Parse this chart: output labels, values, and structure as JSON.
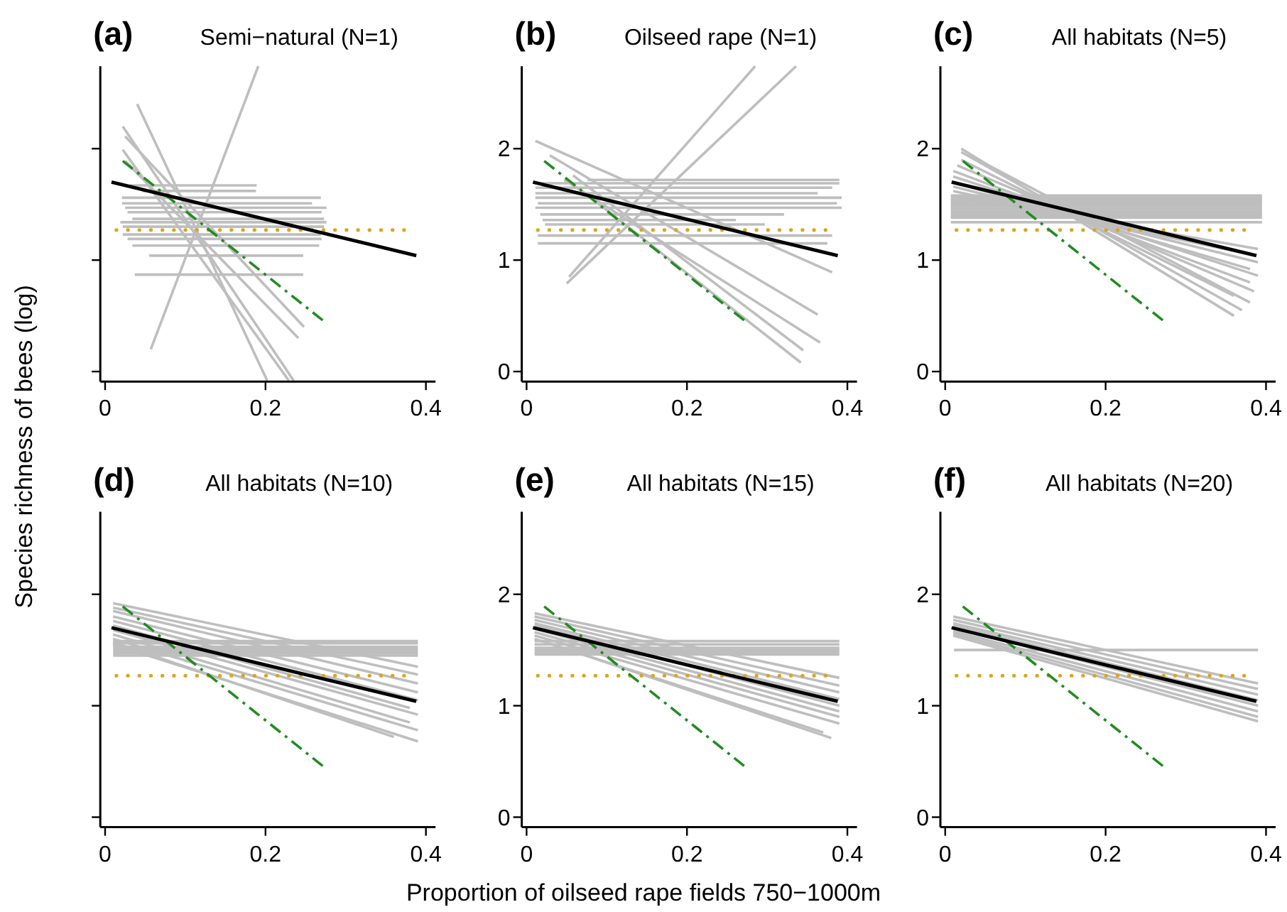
{
  "chart_data": [
    {
      "type": "line",
      "title": "(a)",
      "subtitle": "Semi−natural (N=1)",
      "ylabel": "Species richness of bees (log)",
      "xlim": [
        -0.006,
        0.412
      ],
      "ylim": [
        -0.09,
        2.74
      ],
      "xticks": [
        0,
        0.2,
        0.4
      ],
      "yticks": [
        0,
        1,
        2
      ],
      "tick_labels": "x",
      "series": [
        {
          "color": "#bebebe",
          "x": [
            0.031,
            0.189
          ],
          "values": [
            1.67,
            1.67
          ]
        },
        {
          "color": "#bebebe",
          "x": [
            0.046,
            0.188
          ],
          "values": [
            1.62,
            1.62
          ]
        },
        {
          "color": "#bebebe",
          "x": [
            0.021,
            0.269
          ],
          "values": [
            1.56,
            1.56
          ]
        },
        {
          "color": "#bebebe",
          "x": [
            0.021,
            0.258
          ],
          "values": [
            1.51,
            1.51
          ]
        },
        {
          "color": "#bebebe",
          "x": [
            0.025,
            0.276
          ],
          "values": [
            1.47,
            1.47
          ]
        },
        {
          "color": "#bebebe",
          "x": [
            0.028,
            0.27
          ],
          "values": [
            1.43,
            1.43
          ]
        },
        {
          "color": "#bebebe",
          "x": [
            0.034,
            0.273
          ],
          "values": [
            1.37,
            1.37
          ]
        },
        {
          "color": "#bebebe",
          "x": [
            0.019,
            0.276
          ],
          "values": [
            1.34,
            1.34
          ]
        },
        {
          "color": "#bebebe",
          "x": [
            0.022,
            0.273
          ],
          "values": [
            1.3,
            1.3
          ]
        },
        {
          "color": "#bebebe",
          "x": [
            0.022,
            0.269
          ],
          "values": [
            1.23,
            1.23
          ]
        },
        {
          "color": "#bebebe",
          "x": [
            0.028,
            0.27
          ],
          "values": [
            1.19,
            1.19
          ]
        },
        {
          "color": "#bebebe",
          "x": [
            0.034,
            0.267
          ],
          "values": [
            1.13,
            1.13
          ]
        },
        {
          "color": "#bebebe",
          "x": [
            0.055,
            0.247
          ],
          "values": [
            1.04,
            1.04
          ]
        },
        {
          "color": "#bebebe",
          "x": [
            0.037,
            0.247
          ],
          "values": [
            0.87,
            0.87
          ]
        },
        {
          "color": "#bebebe",
          "x": [
            0.057,
            0.191
          ],
          "values": [
            0.2,
            2.74
          ]
        },
        {
          "color": "#bebebe",
          "x": [
            0.04,
            0.202
          ],
          "values": [
            2.4,
            -0.08
          ]
        },
        {
          "color": "#bebebe",
          "x": [
            0.022,
            0.235
          ],
          "values": [
            2.2,
            -0.08
          ]
        },
        {
          "color": "#bebebe",
          "x": [
            0.022,
            0.229
          ],
          "values": [
            1.99,
            -0.08
          ]
        },
        {
          "color": "#bebebe",
          "x": [
            0.025,
            0.248
          ],
          "values": [
            2.11,
            0.4
          ]
        },
        {
          "color": "#bebebe",
          "x": [
            0.025,
            0.241
          ],
          "values": [
            1.89,
            0.3
          ]
        },
        {
          "color": "#daa520",
          "line_style": "dotted",
          "x": [
            0.014,
            0.38
          ],
          "values": [
            1.27,
            1.27
          ]
        },
        {
          "color": "#228b22",
          "line_style": "dashed",
          "x": [
            0.022,
            0.273
          ],
          "values": [
            1.89,
            0.45
          ]
        },
        {
          "color": "#000000",
          "x": [
            0.008,
            0.388
          ],
          "values": [
            1.7,
            1.04
          ]
        }
      ]
    },
    {
      "type": "line",
      "title": "(b)",
      "subtitle": "Oilseed rape (N=1)",
      "xlim": [
        -0.006,
        0.412
      ],
      "ylim": [
        -0.09,
        2.74
      ],
      "xticks": [
        0,
        0.2,
        0.4
      ],
      "yticks": [
        0,
        1,
        2
      ],
      "series": [
        {
          "color": "#bebebe",
          "x": [
            0.076,
            0.39
          ],
          "values": [
            1.72,
            1.72
          ]
        },
        {
          "color": "#bebebe",
          "x": [
            0.011,
            0.39
          ],
          "values": [
            1.69,
            1.69
          ]
        },
        {
          "color": "#bebebe",
          "x": [
            0.011,
            0.381
          ],
          "values": [
            1.65,
            1.65
          ]
        },
        {
          "color": "#bebebe",
          "x": [
            0.011,
            0.363
          ],
          "values": [
            1.6,
            1.6
          ]
        },
        {
          "color": "#bebebe",
          "x": [
            0.011,
            0.393
          ],
          "values": [
            1.56,
            1.56
          ]
        },
        {
          "color": "#bebebe",
          "x": [
            0.014,
            0.387
          ],
          "values": [
            1.51,
            1.51
          ]
        },
        {
          "color": "#bebebe",
          "x": [
            0.011,
            0.393
          ],
          "values": [
            1.47,
            1.47
          ]
        },
        {
          "color": "#bebebe",
          "x": [
            0.017,
            0.321
          ],
          "values": [
            1.41,
            1.41
          ]
        },
        {
          "color": "#bebebe",
          "x": [
            0.02,
            0.261
          ],
          "values": [
            1.36,
            1.36
          ]
        },
        {
          "color": "#bebebe",
          "x": [
            0.023,
            0.297
          ],
          "values": [
            1.32,
            1.32
          ]
        },
        {
          "color": "#bebebe",
          "x": [
            0.014,
            0.381
          ],
          "values": [
            1.22,
            1.22
          ]
        },
        {
          "color": "#bebebe",
          "x": [
            0.014,
            0.375
          ],
          "values": [
            1.15,
            1.15
          ]
        },
        {
          "color": "#bebebe",
          "x": [
            0.053,
            0.285
          ],
          "values": [
            0.85,
            2.74
          ]
        },
        {
          "color": "#bebebe",
          "x": [
            0.05,
            0.336
          ],
          "values": [
            0.79,
            2.74
          ]
        },
        {
          "color": "#bebebe",
          "x": [
            0.011,
            0.381
          ],
          "values": [
            2.07,
            0.89
          ]
        },
        {
          "color": "#bebebe",
          "x": [
            0.029,
            0.363
          ],
          "values": [
            1.94,
            0.51
          ]
        },
        {
          "color": "#bebebe",
          "x": [
            0.047,
            0.366
          ],
          "values": [
            1.72,
            0.26
          ]
        },
        {
          "color": "#bebebe",
          "x": [
            0.058,
            0.345
          ],
          "values": [
            1.76,
            0.19
          ]
        },
        {
          "color": "#bebebe",
          "x": [
            0.082,
            0.342
          ],
          "values": [
            1.55,
            0.08
          ]
        },
        {
          "color": "#daa520",
          "line_style": "dotted",
          "x": [
            0.014,
            0.38
          ],
          "values": [
            1.27,
            1.27
          ]
        },
        {
          "color": "#228b22",
          "line_style": "dashed",
          "x": [
            0.022,
            0.273
          ],
          "values": [
            1.89,
            0.45
          ]
        },
        {
          "color": "#000000",
          "x": [
            0.008,
            0.388
          ],
          "values": [
            1.7,
            1.04
          ]
        }
      ]
    },
    {
      "type": "line",
      "title": "(c)",
      "subtitle": "All habitats (N=5)",
      "xlim": [
        -0.006,
        0.412
      ],
      "ylim": [
        -0.09,
        2.74
      ],
      "xticks": [
        0,
        0.2,
        0.4
      ],
      "yticks": [
        0,
        1,
        2
      ],
      "series": [
        {
          "color": "#bebebe",
          "x": [
            0.007,
            0.395
          ],
          "values": [
            1.58,
            1.58
          ]
        },
        {
          "color": "#bebebe",
          "x": [
            0.007,
            0.395
          ],
          "values": [
            1.56,
            1.56
          ]
        },
        {
          "color": "#bebebe",
          "x": [
            0.007,
            0.395
          ],
          "values": [
            1.54,
            1.54
          ]
        },
        {
          "color": "#bebebe",
          "x": [
            0.007,
            0.395
          ],
          "values": [
            1.52,
            1.52
          ]
        },
        {
          "color": "#bebebe",
          "x": [
            0.007,
            0.395
          ],
          "values": [
            1.5,
            1.5
          ]
        },
        {
          "color": "#bebebe",
          "x": [
            0.007,
            0.395
          ],
          "values": [
            1.48,
            1.48
          ]
        },
        {
          "color": "#bebebe",
          "x": [
            0.007,
            0.395
          ],
          "values": [
            1.46,
            1.46
          ]
        },
        {
          "color": "#bebebe",
          "x": [
            0.007,
            0.395
          ],
          "values": [
            1.44,
            1.44
          ]
        },
        {
          "color": "#bebebe",
          "x": [
            0.007,
            0.395
          ],
          "values": [
            1.42,
            1.42
          ]
        },
        {
          "color": "#bebebe",
          "x": [
            0.007,
            0.395
          ],
          "values": [
            1.4,
            1.4
          ]
        },
        {
          "color": "#bebebe",
          "x": [
            0.007,
            0.395
          ],
          "values": [
            1.38,
            1.38
          ]
        },
        {
          "color": "#bebebe",
          "x": [
            0.007,
            0.395
          ],
          "values": [
            1.34,
            1.34
          ]
        },
        {
          "color": "#bebebe",
          "x": [
            0.02,
            0.36
          ],
          "values": [
            2,
            0.5
          ]
        },
        {
          "color": "#bebebe",
          "x": [
            0.02,
            0.37
          ],
          "values": [
            1.97,
            0.55
          ]
        },
        {
          "color": "#bebebe",
          "x": [
            0.03,
            0.38
          ],
          "values": [
            1.94,
            0.62
          ]
        },
        {
          "color": "#bebebe",
          "x": [
            0.02,
            0.36
          ],
          "values": [
            1.9,
            0.68
          ]
        },
        {
          "color": "#bebebe",
          "x": [
            0.015,
            0.385
          ],
          "values": [
            1.85,
            0.72
          ]
        },
        {
          "color": "#bebebe",
          "x": [
            0.01,
            0.38
          ],
          "values": [
            1.8,
            0.8
          ]
        },
        {
          "color": "#bebebe",
          "x": [
            0.01,
            0.39
          ],
          "values": [
            1.75,
            0.86
          ]
        },
        {
          "color": "#bebebe",
          "x": [
            0.01,
            0.38
          ],
          "values": [
            1.7,
            0.92
          ]
        },
        {
          "color": "#bebebe",
          "x": [
            0.01,
            0.39
          ],
          "values": [
            1.66,
            0.98
          ]
        },
        {
          "color": "#bebebe",
          "x": [
            0.01,
            0.38
          ],
          "values": [
            1.62,
            1.05
          ]
        },
        {
          "color": "#bebebe",
          "x": [
            0.01,
            0.39
          ],
          "values": [
            1.58,
            1.1
          ]
        },
        {
          "color": "#daa520",
          "line_style": "dotted",
          "x": [
            0.014,
            0.38
          ],
          "values": [
            1.27,
            1.27
          ]
        },
        {
          "color": "#228b22",
          "line_style": "dashed",
          "x": [
            0.022,
            0.273
          ],
          "values": [
            1.89,
            0.45
          ]
        },
        {
          "color": "#000000",
          "x": [
            0.008,
            0.388
          ],
          "values": [
            1.7,
            1.04
          ]
        }
      ]
    },
    {
      "type": "line",
      "title": "(d)",
      "subtitle": "All habitats (N=10)",
      "xlim": [
        -0.006,
        0.412
      ],
      "ylim": [
        -0.09,
        2.74
      ],
      "xticks": [
        0,
        0.2,
        0.4
      ],
      "yticks": [
        0,
        1,
        2
      ],
      "tick_labels": "x",
      "series": [
        {
          "color": "#bebebe",
          "x": [
            0.01,
            0.39
          ],
          "values": [
            1.58,
            1.58
          ]
        },
        {
          "color": "#bebebe",
          "x": [
            0.01,
            0.39
          ],
          "values": [
            1.56,
            1.56
          ]
        },
        {
          "color": "#bebebe",
          "x": [
            0.01,
            0.39
          ],
          "values": [
            1.53,
            1.53
          ]
        },
        {
          "color": "#bebebe",
          "x": [
            0.01,
            0.39
          ],
          "values": [
            1.51,
            1.51
          ]
        },
        {
          "color": "#bebebe",
          "x": [
            0.01,
            0.39
          ],
          "values": [
            1.49,
            1.49
          ]
        },
        {
          "color": "#bebebe",
          "x": [
            0.01,
            0.39
          ],
          "values": [
            1.47,
            1.47
          ]
        },
        {
          "color": "#bebebe",
          "x": [
            0.01,
            0.39
          ],
          "values": [
            1.45,
            1.45
          ]
        },
        {
          "color": "#bebebe",
          "x": [
            0.01,
            0.39
          ],
          "values": [
            1.92,
            1.35
          ]
        },
        {
          "color": "#bebebe",
          "x": [
            0.01,
            0.39
          ],
          "values": [
            1.88,
            1.28
          ]
        },
        {
          "color": "#bebebe",
          "x": [
            0.01,
            0.39
          ],
          "values": [
            1.85,
            1.2
          ]
        },
        {
          "color": "#bebebe",
          "x": [
            0.01,
            0.39
          ],
          "values": [
            1.8,
            1.12
          ]
        },
        {
          "color": "#bebebe",
          "x": [
            0.01,
            0.39
          ],
          "values": [
            1.76,
            1.05
          ]
        },
        {
          "color": "#bebebe",
          "x": [
            0.01,
            0.38
          ],
          "values": [
            1.72,
            0.98
          ]
        },
        {
          "color": "#bebebe",
          "x": [
            0.01,
            0.39
          ],
          "values": [
            1.68,
            0.92
          ]
        },
        {
          "color": "#bebebe",
          "x": [
            0.01,
            0.38
          ],
          "values": [
            1.64,
            0.85
          ]
        },
        {
          "color": "#bebebe",
          "x": [
            0.01,
            0.39
          ],
          "values": [
            1.6,
            0.78
          ]
        },
        {
          "color": "#bebebe",
          "x": [
            0.01,
            0.36
          ],
          "values": [
            1.57,
            0.72
          ]
        },
        {
          "color": "#bebebe",
          "x": [
            0.01,
            0.39
          ],
          "values": [
            1.55,
            0.68
          ]
        },
        {
          "color": "#daa520",
          "line_style": "dotted",
          "x": [
            0.014,
            0.38
          ],
          "values": [
            1.27,
            1.27
          ]
        },
        {
          "color": "#228b22",
          "line_style": "dashed",
          "x": [
            0.022,
            0.273
          ],
          "values": [
            1.89,
            0.45
          ]
        },
        {
          "color": "#000000",
          "x": [
            0.008,
            0.388
          ],
          "values": [
            1.7,
            1.04
          ]
        }
      ]
    },
    {
      "type": "line",
      "title": "(e)",
      "subtitle": "All habitats (N=15)",
      "xlabel": "Proportion of oilseed rape fields 750−1000m",
      "xlim": [
        -0.006,
        0.412
      ],
      "ylim": [
        -0.09,
        2.74
      ],
      "xticks": [
        0,
        0.2,
        0.4
      ],
      "yticks": [
        0,
        1,
        2
      ],
      "series": [
        {
          "color": "#bebebe",
          "x": [
            0.01,
            0.39
          ],
          "values": [
            1.58,
            1.58
          ]
        },
        {
          "color": "#bebebe",
          "x": [
            0.01,
            0.39
          ],
          "values": [
            1.55,
            1.55
          ]
        },
        {
          "color": "#bebebe",
          "x": [
            0.01,
            0.39
          ],
          "values": [
            1.52,
            1.52
          ]
        },
        {
          "color": "#bebebe",
          "x": [
            0.01,
            0.39
          ],
          "values": [
            1.5,
            1.5
          ]
        },
        {
          "color": "#bebebe",
          "x": [
            0.01,
            0.39
          ],
          "values": [
            1.48,
            1.48
          ]
        },
        {
          "color": "#bebebe",
          "x": [
            0.01,
            0.39
          ],
          "values": [
            1.46,
            1.46
          ]
        },
        {
          "color": "#bebebe",
          "x": [
            0.01,
            0.39
          ],
          "values": [
            1.83,
            1.25
          ]
        },
        {
          "color": "#bebebe",
          "x": [
            0.01,
            0.39
          ],
          "values": [
            1.8,
            1.18
          ]
        },
        {
          "color": "#bebebe",
          "x": [
            0.01,
            0.39
          ],
          "values": [
            1.77,
            1.12
          ]
        },
        {
          "color": "#bebebe",
          "x": [
            0.01,
            0.39
          ],
          "values": [
            1.74,
            1.06
          ]
        },
        {
          "color": "#bebebe",
          "x": [
            0.01,
            0.39
          ],
          "values": [
            1.72,
            1
          ]
        },
        {
          "color": "#bebebe",
          "x": [
            0.01,
            0.39
          ],
          "values": [
            1.69,
            0.95
          ]
        },
        {
          "color": "#bebebe",
          "x": [
            0.01,
            0.39
          ],
          "values": [
            1.66,
            0.9
          ]
        },
        {
          "color": "#bebebe",
          "x": [
            0.01,
            0.39
          ],
          "values": [
            1.63,
            0.84
          ]
        },
        {
          "color": "#bebebe",
          "x": [
            0.01,
            0.37
          ],
          "values": [
            1.6,
            0.76
          ]
        },
        {
          "color": "#bebebe",
          "x": [
            0.02,
            0.38
          ],
          "values": [
            1.58,
            0.71
          ]
        },
        {
          "color": "#daa520",
          "line_style": "dotted",
          "x": [
            0.014,
            0.38
          ],
          "values": [
            1.27,
            1.27
          ]
        },
        {
          "color": "#228b22",
          "line_style": "dashed",
          "x": [
            0.022,
            0.273
          ],
          "values": [
            1.89,
            0.45
          ]
        },
        {
          "color": "#000000",
          "x": [
            0.008,
            0.388
          ],
          "values": [
            1.7,
            1.04
          ]
        }
      ]
    },
    {
      "type": "line",
      "title": "(f)",
      "subtitle": "All habitats (N=20)",
      "xlim": [
        -0.006,
        0.412
      ],
      "ylim": [
        -0.09,
        2.74
      ],
      "xticks": [
        0,
        0.2,
        0.4
      ],
      "yticks": [
        0,
        1,
        2
      ],
      "series": [
        {
          "color": "#bebebe",
          "x": [
            0.011,
            0.39
          ],
          "values": [
            1.5,
            1.5
          ]
        },
        {
          "color": "#bebebe",
          "x": [
            0.01,
            0.39
          ],
          "values": [
            1.8,
            1.2
          ]
        },
        {
          "color": "#bebebe",
          "x": [
            0.01,
            0.39
          ],
          "values": [
            1.77,
            1.15
          ]
        },
        {
          "color": "#bebebe",
          "x": [
            0.01,
            0.39
          ],
          "values": [
            1.74,
            1.1
          ]
        },
        {
          "color": "#bebebe",
          "x": [
            0.01,
            0.39
          ],
          "values": [
            1.72,
            1.05
          ]
        },
        {
          "color": "#bebebe",
          "x": [
            0.01,
            0.39
          ],
          "values": [
            1.7,
            1
          ]
        },
        {
          "color": "#bebebe",
          "x": [
            0.01,
            0.39
          ],
          "values": [
            1.67,
            0.95
          ]
        },
        {
          "color": "#bebebe",
          "x": [
            0.01,
            0.39
          ],
          "values": [
            1.65,
            0.9
          ]
        },
        {
          "color": "#bebebe",
          "x": [
            0.01,
            0.39
          ],
          "values": [
            1.63,
            0.86
          ]
        },
        {
          "color": "#daa520",
          "line_style": "dotted",
          "x": [
            0.014,
            0.38
          ],
          "values": [
            1.27,
            1.27
          ]
        },
        {
          "color": "#228b22",
          "line_style": "dashed",
          "x": [
            0.022,
            0.273
          ],
          "values": [
            1.89,
            0.45
          ]
        },
        {
          "color": "#000000",
          "x": [
            0.008,
            0.388
          ],
          "values": [
            1.7,
            1.04
          ]
        }
      ]
    }
  ]
}
